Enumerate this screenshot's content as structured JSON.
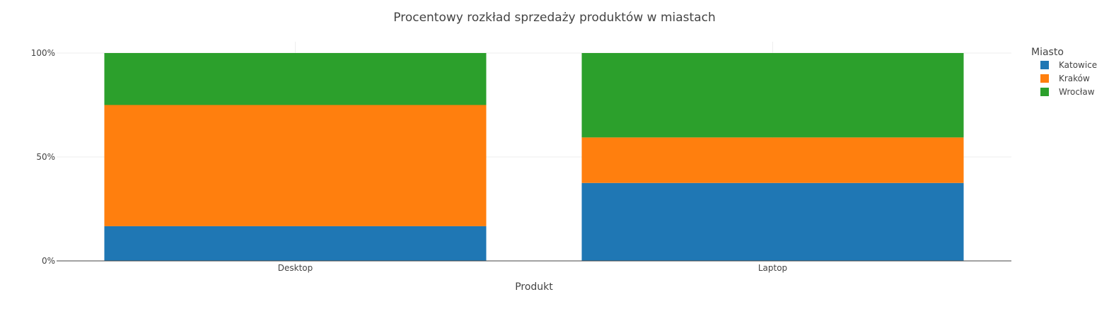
{
  "chart_data": {
    "type": "bar",
    "stacked": true,
    "title": "Procentowy rozkład sprzedaży produktów w miastach",
    "xlabel": "Produkt",
    "ylabel": "",
    "categories": [
      "Desktop",
      "Laptop"
    ],
    "y_ticks": [
      "0%",
      "50%",
      "100%"
    ],
    "ylim": [
      0,
      100
    ],
    "grid": true,
    "legend": {
      "title": "Miasto",
      "position": "top-right"
    },
    "series": [
      {
        "name": "Katowice",
        "values": [
          16.7,
          37.5
        ],
        "color": "#1f77b4"
      },
      {
        "name": "Kraków",
        "values": [
          58.3,
          21.9
        ],
        "color": "#ff7f0e"
      },
      {
        "name": "Wrocław",
        "values": [
          25.0,
          40.6
        ],
        "color": "#2ca02c"
      }
    ]
  }
}
